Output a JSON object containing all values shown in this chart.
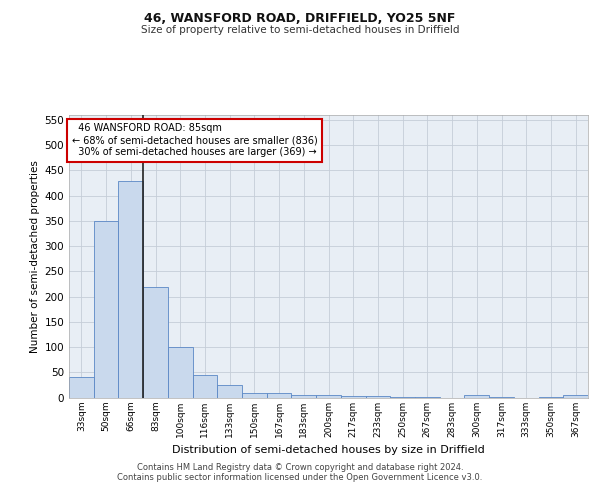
{
  "title1": "46, WANSFORD ROAD, DRIFFIELD, YO25 5NF",
  "title2": "Size of property relative to semi-detached houses in Driffield",
  "xlabel": "Distribution of semi-detached houses by size in Driffield",
  "ylabel": "Number of semi-detached properties",
  "categories": [
    "33sqm",
    "50sqm",
    "66sqm",
    "83sqm",
    "100sqm",
    "116sqm",
    "133sqm",
    "150sqm",
    "167sqm",
    "183sqm",
    "200sqm",
    "217sqm",
    "233sqm",
    "250sqm",
    "267sqm",
    "283sqm",
    "300sqm",
    "317sqm",
    "333sqm",
    "350sqm",
    "367sqm"
  ],
  "values": [
    40,
    350,
    430,
    220,
    100,
    45,
    25,
    8,
    8,
    5,
    5,
    2,
    2,
    1,
    1,
    0,
    5,
    1,
    0,
    1,
    5
  ],
  "bar_color": "#c9d9ed",
  "bar_edge_color": "#5a87c5",
  "grid_color": "#c5cdd8",
  "bg_color": "#e8eef5",
  "annotation_box_color": "#ffffff",
  "annotation_box_edge": "#cc0000",
  "redline_color": "#222222",
  "property_label": "46 WANSFORD ROAD: 85sqm",
  "pct_smaller": 68,
  "count_smaller": 836,
  "pct_larger": 30,
  "count_larger": 369,
  "redline_bin_index": 2,
  "ylim": [
    0,
    560
  ],
  "yticks": [
    0,
    50,
    100,
    150,
    200,
    250,
    300,
    350,
    400,
    450,
    500,
    550
  ],
  "footer1": "Contains HM Land Registry data © Crown copyright and database right 2024.",
  "footer2": "Contains public sector information licensed under the Open Government Licence v3.0."
}
